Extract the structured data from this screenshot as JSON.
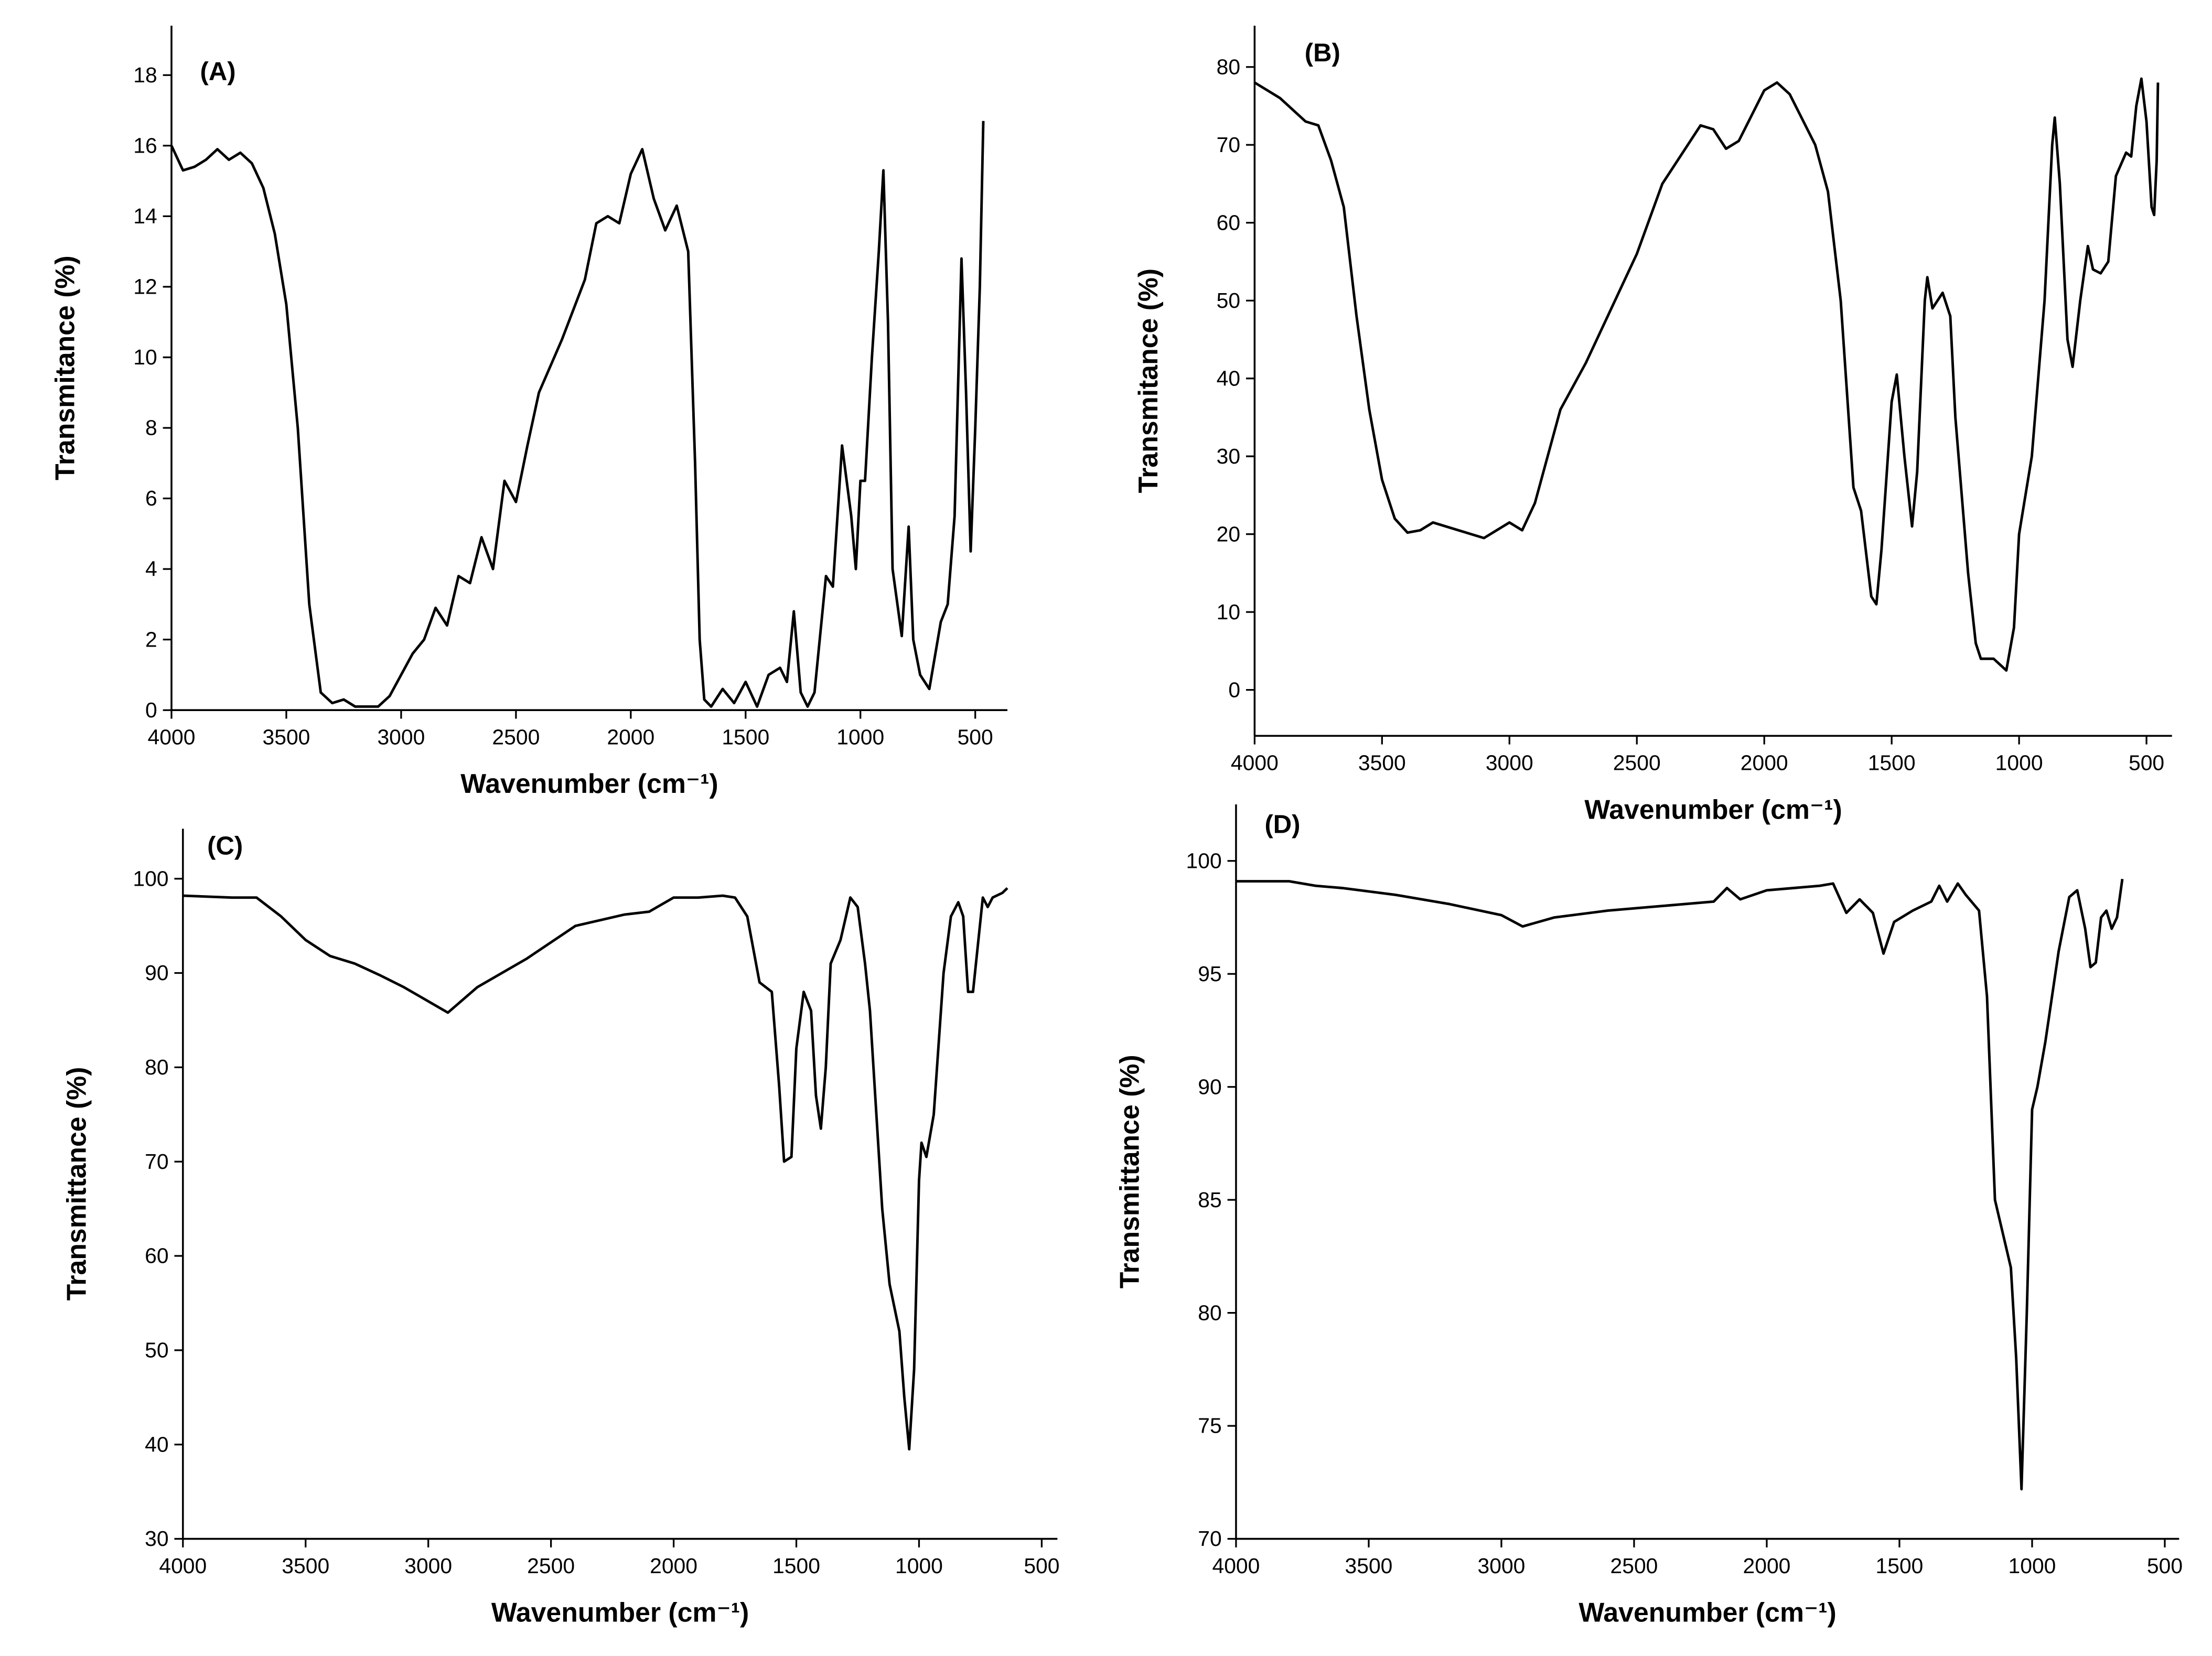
{
  "chart_data": [
    {
      "type": "line",
      "title": "(A)",
      "xlabel": "Wavenumber (cm⁻¹)",
      "ylabel": "Transmitance (%)",
      "color": "#000000",
      "xlim": [
        4000,
        360
      ],
      "ylim": [
        0,
        19.4
      ],
      "xticks": [
        4000,
        3500,
        3000,
        2500,
        2000,
        1500,
        1000,
        500
      ],
      "yticks": [
        0,
        2,
        4,
        6,
        8,
        10,
        12,
        14,
        16,
        18
      ],
      "x": [
        4000,
        3950,
        3900,
        3850,
        3800,
        3750,
        3700,
        3650,
        3600,
        3550,
        3500,
        3450,
        3400,
        3350,
        3300,
        3250,
        3200,
        3100,
        3050,
        3000,
        2950,
        2900,
        2850,
        2800,
        2750,
        2700,
        2650,
        2600,
        2550,
        2500,
        2450,
        2400,
        2300,
        2200,
        2150,
        2100,
        2050,
        2000,
        1950,
        1900,
        1850,
        1800,
        1750,
        1720,
        1700,
        1680,
        1650,
        1600,
        1550,
        1500,
        1450,
        1400,
        1350,
        1320,
        1290,
        1260,
        1230,
        1200,
        1150,
        1120,
        1080,
        1040,
        1020,
        1000,
        980,
        950,
        920,
        900,
        880,
        860,
        820,
        790,
        770,
        740,
        700,
        650,
        620,
        590,
        560,
        540,
        520,
        500,
        480,
        465
      ],
      "values": [
        16,
        15.3,
        15.4,
        15.6,
        15.9,
        15.6,
        15.8,
        15.5,
        14.8,
        13.5,
        11.5,
        8,
        3,
        0.5,
        0.2,
        0.3,
        0.1,
        0.1,
        0.4,
        1,
        1.6,
        2,
        2.9,
        2.4,
        3.8,
        3.6,
        4.9,
        4,
        6.5,
        5.9,
        7.5,
        9,
        10.5,
        12.2,
        13.8,
        14,
        13.8,
        15.2,
        15.9,
        14.5,
        13.6,
        14.3,
        13,
        7,
        2,
        0.3,
        0.1,
        0.6,
        0.2,
        0.8,
        0.1,
        1,
        1.2,
        0.8,
        2.8,
        0.5,
        0.1,
        0.5,
        3.8,
        3.5,
        7.5,
        5.5,
        4,
        6.5,
        6.5,
        10,
        13,
        15.3,
        11,
        4,
        2.1,
        5.2,
        2,
        1,
        0.6,
        2.5,
        3,
        5.5,
        12.8,
        9,
        4.5,
        8,
        12,
        16.7
      ]
    },
    {
      "type": "line",
      "title": "(B)",
      "xlabel": "Wavenumber (cm⁻¹)",
      "ylabel": "Transmitance (%)",
      "color": "#000000",
      "xlim": [
        4000,
        400
      ],
      "ylim": [
        -5.9,
        85.3
      ],
      "xticks": [
        4000,
        3500,
        3000,
        2500,
        2000,
        1500,
        1000,
        500
      ],
      "yticks": [
        0,
        10,
        20,
        30,
        40,
        50,
        60,
        70,
        80
      ],
      "x": [
        4000,
        3900,
        3800,
        3750,
        3700,
        3650,
        3600,
        3550,
        3500,
        3450,
        3400,
        3350,
        3300,
        3200,
        3100,
        3000,
        2950,
        2900,
        2800,
        2700,
        2600,
        2500,
        2400,
        2300,
        2250,
        2200,
        2150,
        2100,
        2000,
        1950,
        1900,
        1800,
        1750,
        1700,
        1650,
        1620,
        1580,
        1560,
        1540,
        1500,
        1480,
        1450,
        1420,
        1400,
        1370,
        1360,
        1340,
        1300,
        1270,
        1250,
        1200,
        1170,
        1150,
        1100,
        1050,
        1020,
        1000,
        950,
        900,
        870,
        860,
        840,
        810,
        790,
        760,
        730,
        710,
        680,
        650,
        620,
        580,
        560,
        540,
        520,
        500,
        480,
        470,
        460,
        455
      ],
      "values": [
        78,
        76,
        73,
        72.5,
        68,
        62,
        48,
        36,
        27,
        22,
        20.2,
        20.5,
        21.5,
        20.5,
        19.5,
        21.5,
        20.5,
        24,
        36,
        42,
        49,
        56,
        65,
        70,
        72.5,
        72,
        69.5,
        70.5,
        77,
        78,
        76.5,
        70,
        64,
        50,
        26,
        23,
        12,
        11,
        18,
        37,
        40.5,
        30,
        21,
        28,
        50,
        53,
        49,
        51,
        48,
        35,
        15,
        6,
        4,
        4,
        2.5,
        8,
        20,
        30,
        50,
        70,
        73.5,
        65,
        45,
        41.5,
        50,
        57,
        54,
        53.5,
        55,
        66,
        69,
        68.5,
        75,
        78.5,
        73,
        62,
        61,
        68,
        78
      ]
    },
    {
      "type": "line",
      "title": "(C)",
      "xlabel": "Wavenumber (cm⁻¹)",
      "ylabel": "Transmittance (%)",
      "color": "#000000",
      "xlim": [
        4000,
        436
      ],
      "ylim": [
        30,
        105.3
      ],
      "xticks": [
        4000,
        3500,
        3000,
        2500,
        2000,
        1500,
        1000,
        500
      ],
      "yticks": [
        30,
        40,
        50,
        60,
        70,
        80,
        90,
        100
      ],
      "x": [
        4000,
        3800,
        3700,
        3600,
        3500,
        3400,
        3300,
        3200,
        3100,
        3000,
        2920,
        2800,
        2600,
        2400,
        2200,
        2100,
        2000,
        1900,
        1800,
        1750,
        1700,
        1650,
        1600,
        1570,
        1550,
        1520,
        1500,
        1470,
        1440,
        1420,
        1400,
        1380,
        1360,
        1320,
        1280,
        1250,
        1220,
        1200,
        1150,
        1120,
        1080,
        1060,
        1040,
        1020,
        1000,
        990,
        970,
        940,
        900,
        870,
        840,
        820,
        800,
        780,
        760,
        740,
        720,
        700,
        660,
        640
      ],
      "values": [
        98.2,
        98,
        98,
        96,
        93.5,
        91.8,
        91,
        89.8,
        88.5,
        87,
        85.8,
        88.5,
        91.5,
        95,
        96.2,
        96.5,
        98,
        98,
        98.2,
        98,
        96,
        89,
        88,
        78,
        70,
        70.5,
        82,
        88,
        86,
        77,
        73.5,
        80,
        91,
        93.5,
        98,
        97,
        91,
        86,
        65,
        57,
        52,
        45,
        39.5,
        48,
        68,
        72,
        70.5,
        75,
        90,
        96,
        97.5,
        96,
        88,
        88,
        93,
        98,
        97,
        98,
        98.5,
        99
      ]
    },
    {
      "type": "line",
      "title": "(D)",
      "xlabel": "Wavenumber (cm⁻¹)",
      "ylabel": "Transmittance (%)",
      "color": "#000000",
      "xlim": [
        4000,
        446
      ],
      "ylim": [
        70,
        102.5
      ],
      "xticks": [
        4000,
        3500,
        3000,
        2500,
        2000,
        1500,
        1000,
        500
      ],
      "yticks": [
        70,
        75,
        80,
        85,
        90,
        95,
        100
      ],
      "x": [
        4000,
        3800,
        3700,
        3600,
        3400,
        3200,
        3000,
        2920,
        2800,
        2600,
        2400,
        2200,
        2150,
        2100,
        2000,
        1900,
        1800,
        1750,
        1700,
        1650,
        1600,
        1560,
        1520,
        1450,
        1380,
        1350,
        1320,
        1280,
        1250,
        1200,
        1170,
        1140,
        1100,
        1080,
        1060,
        1040,
        1020,
        1000,
        980,
        950,
        900,
        860,
        830,
        800,
        780,
        760,
        740,
        720,
        700,
        680,
        660
      ],
      "values": [
        99.1,
        99.1,
        98.9,
        98.8,
        98.5,
        98.1,
        97.6,
        97.1,
        97.5,
        97.8,
        98,
        98.2,
        98.8,
        98.3,
        98.7,
        98.8,
        98.9,
        99,
        97.7,
        98.3,
        97.7,
        95.9,
        97.3,
        97.8,
        98.2,
        98.9,
        98.2,
        99,
        98.5,
        97.8,
        94,
        85,
        83,
        82,
        78,
        72.2,
        80,
        89,
        90,
        92,
        96,
        98.4,
        98.7,
        97,
        95.3,
        95.5,
        97.5,
        97.8,
        97,
        97.5,
        99.2
      ]
    }
  ]
}
